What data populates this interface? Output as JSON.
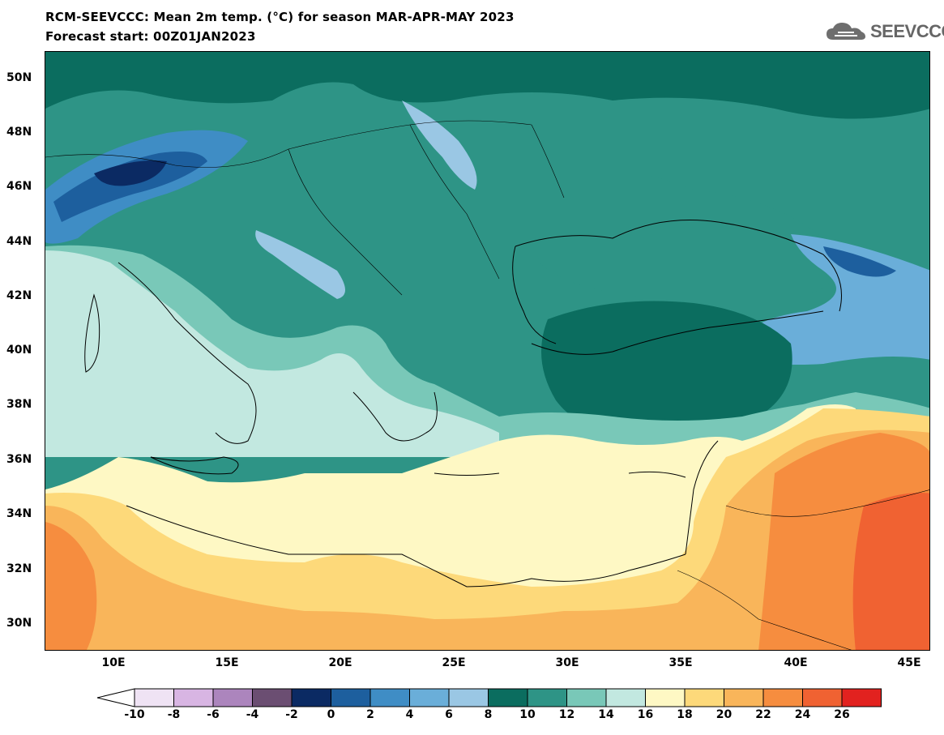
{
  "title": {
    "line1": "RCM-SEEVCCC: Mean 2m temp. (°C) for season MAR-APR-MAY 2023",
    "line2": "Forecast start: 00Z01JAN2023"
  },
  "logo": {
    "text": "SEEVCCC",
    "icon": "cloud-icon"
  },
  "map": {
    "variable": "Mean 2m temperature",
    "unit": "°C",
    "lon_range": [
      7,
      45.5
    ],
    "lat_range": [
      29,
      51
    ],
    "lat_ticks": [
      "50N",
      "48N",
      "46N",
      "44N",
      "42N",
      "40N",
      "38N",
      "36N",
      "34N",
      "32N",
      "30N"
    ],
    "lon_ticks": [
      "10E",
      "15E",
      "20E",
      "25E",
      "30E",
      "35E",
      "40E",
      "45E"
    ]
  },
  "legend": {
    "ticks": [
      "-10",
      "-8",
      "-6",
      "-4",
      "-2",
      "0",
      "2",
      "4",
      "6",
      "8",
      "10",
      "12",
      "14",
      "16",
      "18",
      "20",
      "22",
      "24",
      "26"
    ],
    "colors": [
      "#efe3f4",
      "#d8b5e3",
      "#ac85bd",
      "#6b4e72",
      "#0b2a63",
      "#1d5f9e",
      "#3f8dc5",
      "#6aaed9",
      "#9ac7e4",
      "#0b6d5f",
      "#2e9486",
      "#79c8b8",
      "#c2e8e0",
      "#fef8c4",
      "#fdd97a",
      "#f9b55a",
      "#f68d3f",
      "#f06232",
      "#e2221f"
    ],
    "under_color": "#ffffff",
    "over_color": "#d92020"
  }
}
